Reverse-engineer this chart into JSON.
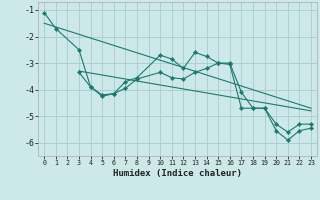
{
  "title": "",
  "xlabel": "Humidex (Indice chaleur)",
  "bg_color": "#cce8e8",
  "grid_color": "#aacccc",
  "line_color": "#1a7a6e",
  "xlim": [
    -0.5,
    23.5
  ],
  "ylim": [
    -6.5,
    -0.7
  ],
  "yticks": [
    -6,
    -5,
    -4,
    -3,
    -2,
    -1
  ],
  "xticks": [
    0,
    1,
    2,
    3,
    4,
    5,
    6,
    7,
    8,
    9,
    10,
    11,
    12,
    13,
    14,
    15,
    16,
    17,
    18,
    19,
    20,
    21,
    22,
    23
  ],
  "line1_x": [
    0,
    1,
    3,
    4,
    5,
    6,
    7,
    8,
    10,
    11,
    12,
    13,
    14,
    15,
    16,
    17,
    18,
    19,
    20,
    21,
    22,
    23
  ],
  "line1_y": [
    -1.1,
    -1.7,
    -2.5,
    -3.9,
    -4.2,
    -4.15,
    -3.7,
    -3.55,
    -2.7,
    -2.85,
    -3.2,
    -2.6,
    -2.75,
    -3.0,
    -3.0,
    -4.1,
    -4.7,
    -4.7,
    -5.3,
    -5.6,
    -5.3,
    -5.3
  ],
  "line2_x": [
    3,
    4,
    5,
    6,
    7,
    8,
    10,
    11,
    12,
    13,
    14,
    15,
    16,
    17,
    18,
    19,
    20,
    21,
    22,
    23
  ],
  "line2_y": [
    -3.35,
    -3.9,
    -4.25,
    -4.15,
    -3.95,
    -3.6,
    -3.35,
    -3.55,
    -3.6,
    -3.35,
    -3.2,
    -3.0,
    -3.05,
    -4.7,
    -4.7,
    -4.7,
    -5.55,
    -5.9,
    -5.55,
    -5.45
  ],
  "line3_x": [
    0,
    23
  ],
  "line3_y": [
    -1.5,
    -4.7
  ],
  "line4_x": [
    3,
    23
  ],
  "line4_y": [
    -3.3,
    -4.8
  ]
}
